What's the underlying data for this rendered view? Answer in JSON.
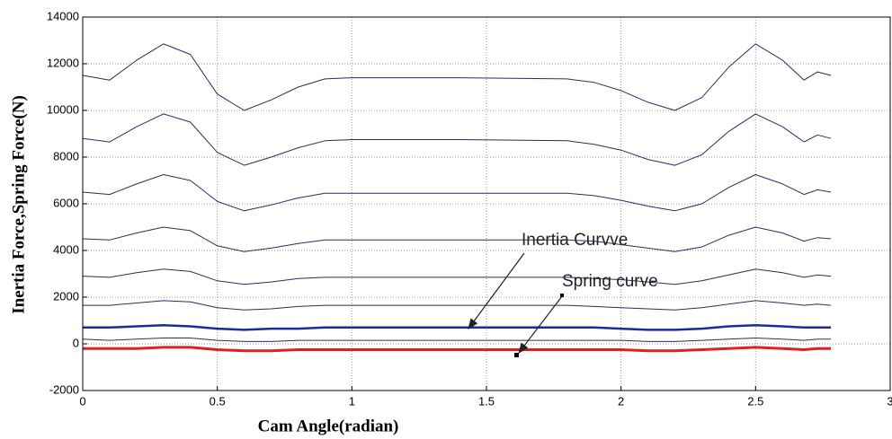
{
  "chart_data": {
    "type": "line",
    "xlabel": "Cam Angle(radian)",
    "ylabel": "Inertia Force,Spring Force(N)",
    "annotations": [
      "Inertia Curvve",
      "Spring curve"
    ],
    "x": [
      0,
      0.1,
      0.2,
      0.3,
      0.4,
      0.5,
      0.6,
      0.7,
      0.8,
      0.9,
      1.0,
      1.4,
      1.8,
      1.9,
      2.0,
      2.1,
      2.2,
      2.3,
      2.4,
      2.5,
      2.6,
      2.68,
      2.73,
      2.78
    ],
    "series": [
      {
        "color": "#2b2b66",
        "line_width": 1,
        "values": [
          11500,
          11300,
          12150,
          12850,
          12400,
          10700,
          10000,
          10450,
          11000,
          11350,
          11400,
          11400,
          11350,
          11200,
          10850,
          10350,
          10000,
          10550,
          11850,
          12850,
          12150,
          11300,
          11650,
          11500
        ]
      },
      {
        "color": "#2b2b66",
        "line_width": 1,
        "values": [
          8800,
          8650,
          9300,
          9850,
          9500,
          8200,
          7650,
          8000,
          8400,
          8700,
          8750,
          8750,
          8700,
          8550,
          8300,
          7900,
          7650,
          8100,
          9100,
          9850,
          9300,
          8650,
          8950,
          8800
        ]
      },
      {
        "color": "#2b2b66",
        "line_width": 1,
        "values": [
          6500,
          6400,
          6850,
          7250,
          7000,
          6100,
          5700,
          5950,
          6250,
          6450,
          6450,
          6450,
          6450,
          6350,
          6150,
          5900,
          5700,
          6000,
          6700,
          7250,
          6850,
          6400,
          6600,
          6500
        ]
      },
      {
        "color": "#2b2b66",
        "line_width": 1,
        "values": [
          4500,
          4450,
          4750,
          5000,
          4850,
          4200,
          3950,
          4100,
          4300,
          4450,
          4450,
          4450,
          4450,
          4400,
          4250,
          4100,
          3950,
          4150,
          4650,
          5000,
          4750,
          4400,
          4550,
          4500
        ]
      },
      {
        "color": "#2b2b66",
        "line_width": 1,
        "values": [
          2900,
          2850,
          3050,
          3200,
          3100,
          2700,
          2550,
          2650,
          2800,
          2850,
          2850,
          2850,
          2850,
          2800,
          2750,
          2650,
          2550,
          2700,
          2950,
          3200,
          3050,
          2850,
          2950,
          2900
        ]
      },
      {
        "color": "#2b2b66",
        "line_width": 1,
        "values": [
          1650,
          1650,
          1750,
          1850,
          1800,
          1550,
          1450,
          1500,
          1600,
          1650,
          1650,
          1650,
          1650,
          1600,
          1550,
          1500,
          1450,
          1550,
          1700,
          1850,
          1750,
          1650,
          1700,
          1650
        ]
      },
      {
        "color": "#1a2aa0",
        "line_width": 2.5,
        "values": [
          700,
          700,
          750,
          800,
          750,
          650,
          600,
          650,
          650,
          700,
          700,
          700,
          700,
          700,
          650,
          600,
          600,
          650,
          750,
          800,
          750,
          700,
          700,
          700
        ]
      },
      {
        "color": "#2b2b66",
        "line_width": 1,
        "values": [
          200,
          150,
          200,
          250,
          250,
          150,
          100,
          100,
          150,
          150,
          150,
          150,
          150,
          150,
          150,
          100,
          100,
          150,
          200,
          250,
          200,
          150,
          200,
          200
        ]
      },
      {
        "color": "#e02020",
        "line_width": 3,
        "values": [
          -200,
          -200,
          -200,
          -150,
          -150,
          -250,
          -300,
          -300,
          -250,
          -250,
          -250,
          -250,
          -250,
          -250,
          -250,
          -300,
          -300,
          -250,
          -200,
          -150,
          -200,
          -250,
          -200,
          -200
        ]
      }
    ],
    "xlim": [
      0,
      3
    ],
    "xticks": [
      0,
      0.5,
      1,
      1.5,
      2,
      2.5,
      3
    ],
    "ylim": [
      -2000,
      14000
    ],
    "yticks": [
      -2000,
      0,
      2000,
      4000,
      6000,
      8000,
      10000,
      12000,
      14000
    ],
    "grid": true
  }
}
